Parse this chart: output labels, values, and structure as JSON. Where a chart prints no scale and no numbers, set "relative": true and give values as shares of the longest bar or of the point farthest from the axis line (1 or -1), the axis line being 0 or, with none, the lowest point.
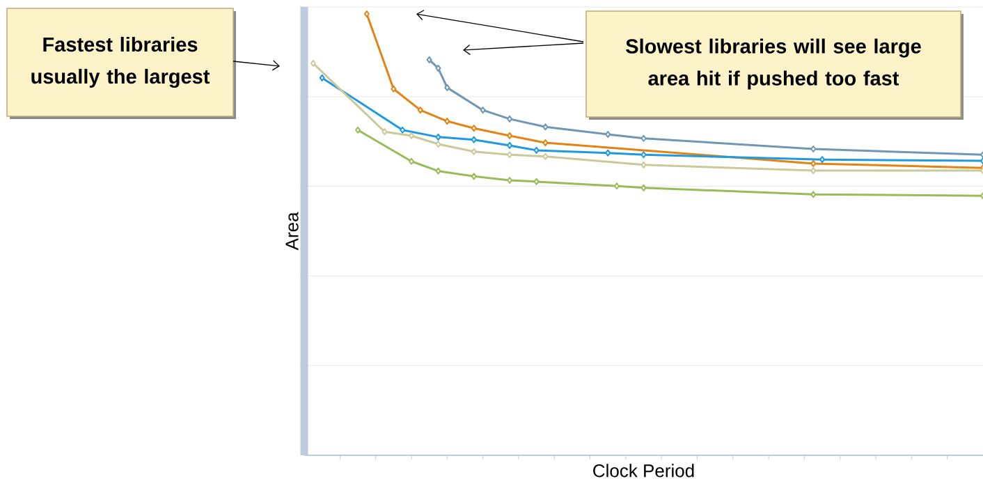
{
  "chart_data": {
    "type": "line",
    "relative": true,
    "xlabel": "Clock Period",
    "ylabel": "Area",
    "annotations": [
      "Fastest libraries usually the largest",
      "Slowest libraries will see large area hit if pushed too fast"
    ],
    "categories": [
      null,
      null,
      null,
      null,
      null,
      null,
      null,
      null,
      null,
      null,
      null,
      null,
      null,
      null,
      null,
      null,
      null,
      null,
      null,
      null,
      null,
      null,
      null,
      null,
      null,
      null,
      null,
      null,
      null,
      null,
      null,
      null,
      null,
      null,
      null,
      null,
      null,
      null,
      null,
      null,
      null,
      null,
      null,
      null,
      null,
      null,
      null,
      null,
      null,
      null,
      null,
      null,
      null,
      null,
      null,
      null,
      null,
      null,
      null,
      null,
      null,
      null,
      null,
      null,
      null,
      null,
      null,
      null,
      null,
      null,
      null,
      null,
      null,
      null,
      null,
      null,
      null
    ],
    "grid": "y",
    "marker": "diamond",
    "line_style": "solid",
    "series": [
      {
        "color": "#e48312",
        "values": [
          null,
          null,
          null,
          null,
          null,
          null,
          null,
          1.0,
          null,
          null,
          0.83,
          null,
          null,
          0.782,
          null,
          null,
          0.757,
          null,
          null,
          0.741,
          null,
          null,
          null,
          0.724,
          null,
          null,
          null,
          0.708,
          null,
          null,
          null,
          null,
          null,
          null,
          null,
          null,
          null,
          null,
          null,
          null,
          null,
          null,
          null,
          null,
          null,
          null,
          null,
          null,
          null,
          null,
          null,
          null,
          null,
          null,
          null,
          null,
          null,
          0.661,
          null,
          null,
          null,
          null,
          null,
          null,
          null,
          null,
          null,
          null,
          null,
          null,
          null,
          null,
          null,
          null,
          null,
          null,
          0.651
        ]
      },
      {
        "color": "#6f97b5",
        "values": [
          null,
          null,
          null,
          null,
          null,
          null,
          null,
          null,
          null,
          null,
          null,
          null,
          null,
          null,
          0.896,
          0.877,
          0.833,
          null,
          null,
          null,
          0.782,
          null,
          null,
          0.762,
          null,
          null,
          null,
          0.744,
          null,
          null,
          null,
          null,
          null,
          null,
          0.727,
          null,
          null,
          null,
          0.718,
          null,
          null,
          null,
          null,
          null,
          null,
          null,
          null,
          null,
          null,
          null,
          null,
          null,
          null,
          null,
          null,
          null,
          null,
          0.694,
          null,
          null,
          null,
          null,
          null,
          null,
          null,
          null,
          null,
          null,
          null,
          null,
          null,
          null,
          null,
          null,
          null,
          null,
          0.681
        ]
      },
      {
        "color": "#1f9ae0",
        "values": [
          null,
          null,
          0.855,
          null,
          null,
          null,
          null,
          null,
          null,
          null,
          null,
          0.737,
          null,
          null,
          null,
          0.721,
          null,
          null,
          null,
          0.715,
          null,
          null,
          null,
          0.702,
          null,
          null,
          0.691,
          null,
          null,
          null,
          null,
          null,
          null,
          null,
          0.685,
          null,
          null,
          null,
          0.681,
          null,
          null,
          null,
          null,
          null,
          null,
          null,
          null,
          null,
          null,
          null,
          null,
          null,
          null,
          null,
          null,
          null,
          null,
          null,
          0.67,
          null,
          null,
          null,
          null,
          null,
          null,
          null,
          null,
          null,
          null,
          null,
          null,
          null,
          null,
          null,
          null,
          null,
          0.667
        ]
      },
      {
        "color": "#c9c99a",
        "values": [
          null,
          0.888,
          null,
          null,
          null,
          null,
          null,
          null,
          null,
          0.733,
          null,
          null,
          0.724,
          null,
          null,
          0.705,
          null,
          null,
          null,
          0.688,
          null,
          null,
          null,
          0.681,
          null,
          null,
          null,
          0.677,
          null,
          null,
          null,
          null,
          null,
          null,
          null,
          null,
          null,
          null,
          0.658,
          null,
          null,
          null,
          null,
          null,
          null,
          null,
          null,
          null,
          null,
          null,
          null,
          null,
          null,
          null,
          null,
          null,
          null,
          0.645,
          null,
          null,
          null,
          null,
          null,
          null,
          null,
          null,
          null,
          null,
          null,
          null,
          null,
          null,
          null,
          null,
          null,
          null,
          0.645
        ]
      },
      {
        "color": "#9bbb59",
        "values": [
          null,
          null,
          null,
          null,
          null,
          null,
          0.737,
          null,
          null,
          null,
          null,
          null,
          0.666,
          null,
          null,
          0.644,
          null,
          null,
          null,
          0.632,
          null,
          null,
          null,
          0.623,
          null,
          null,
          0.62,
          null,
          null,
          null,
          null,
          null,
          null,
          null,
          null,
          0.61,
          null,
          null,
          0.606,
          null,
          null,
          null,
          null,
          null,
          null,
          null,
          null,
          null,
          null,
          null,
          null,
          null,
          null,
          null,
          null,
          null,
          null,
          0.591,
          null,
          null,
          null,
          null,
          null,
          null,
          null,
          null,
          null,
          null,
          null,
          null,
          null,
          null,
          null,
          null,
          null,
          null,
          0.588
        ]
      }
    ]
  }
}
